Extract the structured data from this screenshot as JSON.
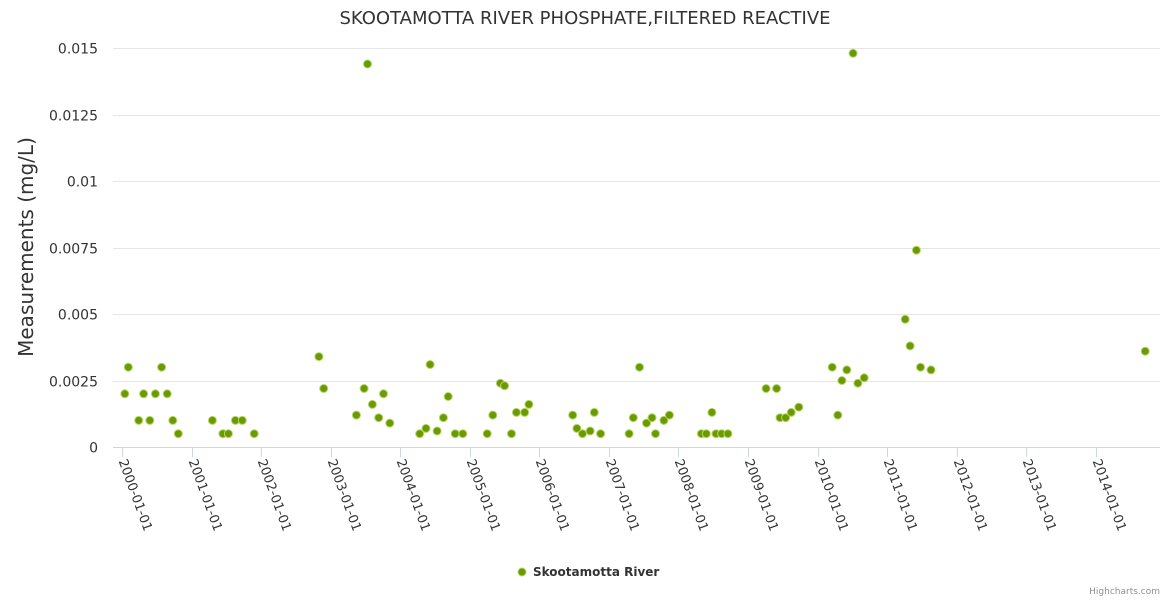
{
  "chart_data": {
    "type": "scatter",
    "title": "SKOOTAMOTTA RIVER PHOSPHATE,FILTERED REACTIVE",
    "ylabel": "Measurements (mg/L)",
    "xlabel": "",
    "ylim": [
      0,
      0.015
    ],
    "yticks": [
      0,
      0.0025,
      0.005,
      0.0075,
      0.01,
      0.0125,
      0.015
    ],
    "ytick_labels": [
      "0",
      "0.0025",
      "0.005",
      "0.0075",
      "0.01",
      "0.0125",
      "0.015"
    ],
    "xlim": [
      2000.0,
      2014.75
    ],
    "xticks": [
      2000,
      2001,
      2002,
      2003,
      2004,
      2005,
      2006,
      2007,
      2008,
      2009,
      2010,
      2011,
      2012,
      2013,
      2014
    ],
    "xtick_labels": [
      "2000-01-01",
      "2001-01-01",
      "2002-01-01",
      "2003-01-01",
      "2004-01-01",
      "2005-01-01",
      "2006-01-01",
      "2007-01-01",
      "2008-01-01",
      "2009-01-01",
      "2010-01-01",
      "2011-01-01",
      "2012-01-01",
      "2013-01-01",
      "2014-01-01"
    ],
    "grid": true,
    "legend_position": "bottom-center",
    "series": [
      {
        "name": "Skootamotta River",
        "color": "#6a9a00",
        "points": [
          [
            2000.04,
            0.002
          ],
          [
            2000.09,
            0.003
          ],
          [
            2000.24,
            0.001
          ],
          [
            2000.31,
            0.002
          ],
          [
            2000.4,
            0.001
          ],
          [
            2000.48,
            0.002
          ],
          [
            2000.57,
            0.003
          ],
          [
            2000.65,
            0.002
          ],
          [
            2000.73,
            0.001
          ],
          [
            2000.81,
            0.0005
          ],
          [
            2001.3,
            0.001
          ],
          [
            2001.45,
            0.0005
          ],
          [
            2001.53,
            0.0005
          ],
          [
            2001.63,
            0.001
          ],
          [
            2001.73,
            0.001
          ],
          [
            2001.9,
            0.0005
          ],
          [
            2002.83,
            0.0034
          ],
          [
            2002.9,
            0.0022
          ],
          [
            2003.37,
            0.0012
          ],
          [
            2003.48,
            0.0022
          ],
          [
            2003.53,
            0.0144
          ],
          [
            2003.6,
            0.0016
          ],
          [
            2003.69,
            0.0011
          ],
          [
            2003.76,
            0.002
          ],
          [
            2003.85,
            0.0009
          ],
          [
            2004.28,
            0.0005
          ],
          [
            2004.37,
            0.0007
          ],
          [
            2004.43,
            0.0031
          ],
          [
            2004.53,
            0.0006
          ],
          [
            2004.62,
            0.0011
          ],
          [
            2004.69,
            0.0019
          ],
          [
            2004.79,
            0.0005
          ],
          [
            2004.9,
            0.0005
          ],
          [
            2005.25,
            0.0005
          ],
          [
            2005.33,
            0.0012
          ],
          [
            2005.44,
            0.0024
          ],
          [
            2005.5,
            0.0023
          ],
          [
            2005.6,
            0.0005
          ],
          [
            2005.67,
            0.0013
          ],
          [
            2005.79,
            0.0013
          ],
          [
            2005.85,
            0.0016
          ],
          [
            2006.48,
            0.0012
          ],
          [
            2006.54,
            0.0007
          ],
          [
            2006.62,
            0.0005
          ],
          [
            2006.73,
            0.0006
          ],
          [
            2006.79,
            0.0013
          ],
          [
            2006.88,
            0.0005
          ],
          [
            2007.29,
            0.0005
          ],
          [
            2007.35,
            0.0011
          ],
          [
            2007.44,
            0.003
          ],
          [
            2007.54,
            0.0009
          ],
          [
            2007.62,
            0.0011
          ],
          [
            2007.67,
            0.0005
          ],
          [
            2007.79,
            0.001
          ],
          [
            2007.87,
            0.0012
          ],
          [
            2008.33,
            0.0005
          ],
          [
            2008.4,
            0.0005
          ],
          [
            2008.48,
            0.0013
          ],
          [
            2008.54,
            0.0005
          ],
          [
            2008.62,
            0.0005
          ],
          [
            2008.71,
            0.0005
          ],
          [
            2009.26,
            0.0022
          ],
          [
            2009.41,
            0.0022
          ],
          [
            2009.46,
            0.0011
          ],
          [
            2009.54,
            0.0011
          ],
          [
            2009.62,
            0.0013
          ],
          [
            2009.73,
            0.0015
          ],
          [
            2010.21,
            0.003
          ],
          [
            2010.29,
            0.0012
          ],
          [
            2010.35,
            0.0025
          ],
          [
            2010.42,
            0.0029
          ],
          [
            2010.51,
            0.0148
          ],
          [
            2010.58,
            0.0024
          ],
          [
            2010.67,
            0.0026
          ],
          [
            2011.26,
            0.0048
          ],
          [
            2011.33,
            0.0038
          ],
          [
            2011.42,
            0.0074
          ],
          [
            2011.48,
            0.003
          ],
          [
            2011.63,
            0.0029
          ],
          [
            2014.71,
            0.0036
          ]
        ]
      }
    ]
  },
  "legend": {
    "label": "Skootamotta River"
  },
  "credits": {
    "text": "Highcharts.com"
  }
}
